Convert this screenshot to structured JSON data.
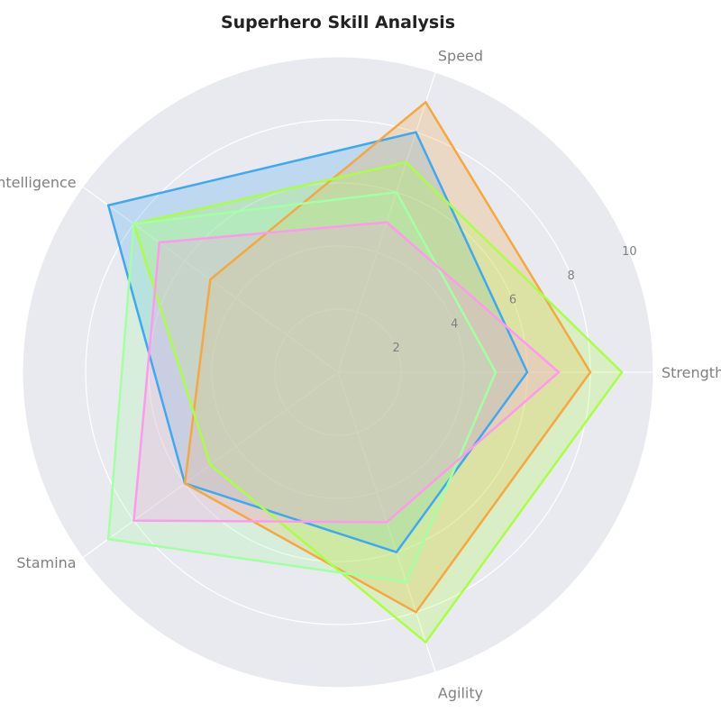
{
  "chart_data": {
    "type": "radar",
    "title": "Superhero Skill Analysis",
    "axes": [
      "Strength",
      "Speed",
      "Intelligence",
      "Stamina",
      "Agility"
    ],
    "rlim": [
      0,
      10
    ],
    "rticks": [
      2,
      4,
      6,
      8,
      10
    ],
    "grid": true,
    "legend": "none",
    "background_color": "#e9e9f0",
    "grid_color": "#ffffff",
    "series": [
      {
        "color": "#3ea8f0",
        "values": [
          6,
          8,
          9,
          6,
          6
        ]
      },
      {
        "color": "#f5a840",
        "values": [
          8,
          9,
          5,
          6,
          8
        ]
      },
      {
        "color": "#aaff44",
        "values": [
          9,
          7,
          8,
          5,
          9
        ]
      },
      {
        "color": "#a4ffa4",
        "values": [
          5,
          6,
          8,
          9,
          7
        ]
      },
      {
        "color": "#ff99ee",
        "values": [
          7,
          5,
          7,
          8,
          5
        ]
      }
    ]
  }
}
